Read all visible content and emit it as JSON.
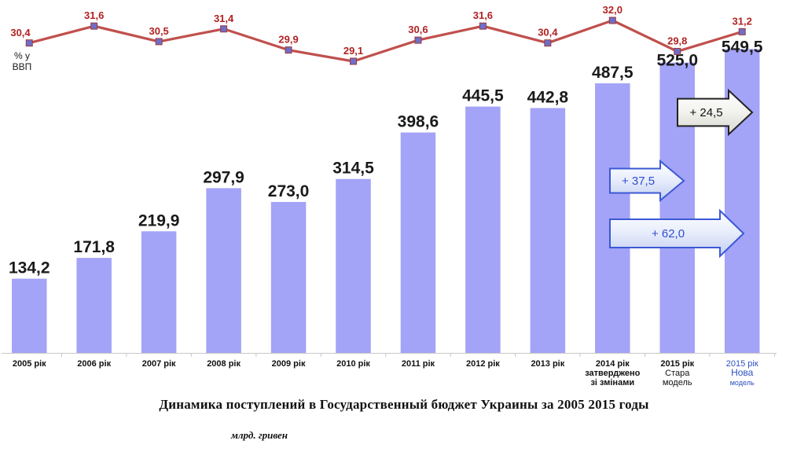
{
  "chart_data": {
    "type": "bar",
    "categories": [
      [
        "2005 рік"
      ],
      [
        "2006 рік"
      ],
      [
        "2007 рік"
      ],
      [
        "2008 рік"
      ],
      [
        "2009 рік"
      ],
      [
        "2010 рік"
      ],
      [
        "2011 рік"
      ],
      [
        "2012 рік"
      ],
      [
        "2013 рік"
      ],
      [
        "2014 рік",
        "затверджено",
        "зі змінами"
      ],
      [
        "2015 рік",
        "Стара",
        "модель"
      ],
      [
        "2015 рік",
        "Нова",
        "модель"
      ]
    ],
    "bar_series": {
      "values": [
        134.2,
        171.8,
        219.9,
        297.9,
        273.0,
        314.5,
        398.6,
        445.5,
        442.8,
        487.5,
        525.0,
        549.5
      ],
      "labels": [
        "134,2",
        "171,8",
        "219,9",
        "297,9",
        "273,0",
        "314,5",
        "398,6",
        "445,5",
        "442,8",
        "487,5",
        "525,0",
        "549,5"
      ],
      "color": "#a3a3f7"
    },
    "line_series": {
      "axis_label": [
        "% у",
        "ВВП"
      ],
      "values": [
        30.4,
        31.6,
        30.5,
        31.4,
        29.9,
        29.1,
        30.6,
        31.6,
        30.4,
        32.0,
        29.8,
        31.2
      ],
      "labels": [
        "30,4",
        "31,6",
        "30,5",
        "31,4",
        "29,9",
        "29,1",
        "30,6",
        "31,6",
        "30,4",
        "32,0",
        "29,8",
        "31,2"
      ],
      "line_color": "#c0504d",
      "marker_color": "#6e6ec8",
      "label_color": "#b22222"
    },
    "annotations": [
      {
        "text": "+ 24,5",
        "style": "dark"
      },
      {
        "text": "+ 37,5",
        "style": "blue"
      },
      {
        "text": "+ 62,0",
        "style": "blue"
      }
    ],
    "grid": false,
    "legend": "none"
  },
  "caption": {
    "title": "Динамика поступлений в Государственный бюджет Украины за 2005 2015 годы",
    "unit": "млрд. гривен"
  }
}
